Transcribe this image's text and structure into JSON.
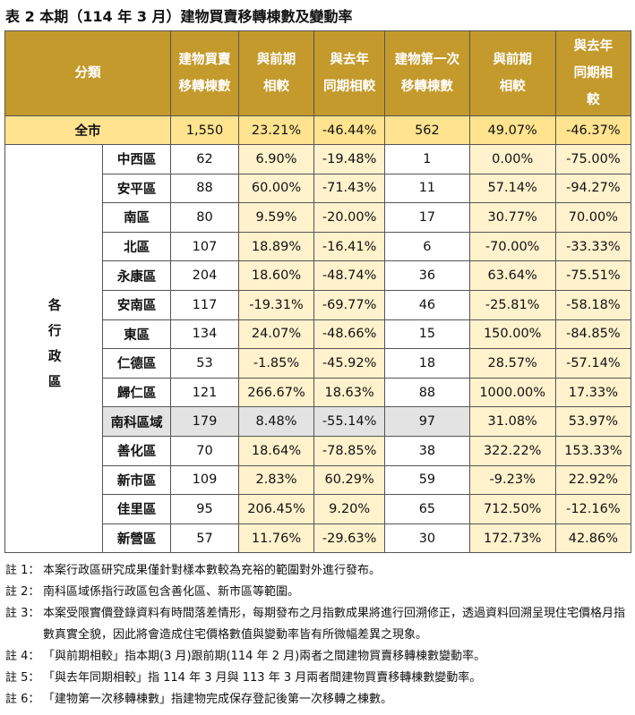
{
  "title": "表 2 本期（114 年 3 月）建物買賣移轉棟數及變動率",
  "table": {
    "header": [
      [
        "分類"
      ],
      [
        "建物買賣",
        "移轉棟數"
      ],
      [
        "與前期",
        "相較"
      ],
      [
        "與去年",
        "同期相較"
      ],
      [
        "建物第一次",
        "移轉棟數"
      ],
      [
        "與前期",
        "相較"
      ],
      [
        "與去年",
        "同期相",
        "較"
      ]
    ],
    "total": [
      "全市",
      "1,550",
      "23.21%",
      "-46.44%",
      "562",
      "49.07%",
      "-46.37%"
    ],
    "group_label": "各行政區",
    "rows": [
      [
        "中西區",
        "62",
        "6.90%",
        "-19.48%",
        "1",
        "0.00%",
        "-75.00%"
      ],
      [
        "安平區",
        "88",
        "60.00%",
        "-71.43%",
        "11",
        "57.14%",
        "-94.27%"
      ],
      [
        "南區",
        "80",
        "9.59%",
        "-20.00%",
        "17",
        "30.77%",
        "70.00%"
      ],
      [
        "北區",
        "107",
        "18.89%",
        "-16.41%",
        "6",
        "-70.00%",
        "-33.33%"
      ],
      [
        "永康區",
        "204",
        "18.60%",
        "-48.74%",
        "36",
        "63.64%",
        "-75.51%"
      ],
      [
        "安南區",
        "117",
        "-19.31%",
        "-69.77%",
        "46",
        "-25.81%",
        "-58.18%"
      ],
      [
        "東區",
        "134",
        "24.07%",
        "-48.66%",
        "15",
        "150.00%",
        "-84.85%"
      ],
      [
        "仁德區",
        "53",
        "-1.85%",
        "-45.92%",
        "18",
        "28.57%",
        "-57.14%"
      ],
      [
        "歸仁區",
        "121",
        "266.67%",
        "18.63%",
        "88",
        "1000.00%",
        "17.33%"
      ],
      [
        "南科區域",
        "179",
        "8.48%",
        "-55.14%",
        "97",
        "31.08%",
        "53.97%"
      ],
      [
        "善化區",
        "70",
        "18.64%",
        "-78.85%",
        "38",
        "322.22%",
        "153.33%"
      ],
      [
        "新市區",
        "109",
        "2.83%",
        "60.29%",
        "59",
        "-9.23%",
        "22.92%"
      ],
      [
        "佳里區",
        "95",
        "206.45%",
        "9.20%",
        "65",
        "712.50%",
        "-12.16%"
      ],
      [
        "新營區",
        "57",
        "11.76%",
        "-29.63%",
        "30",
        "172.73%",
        "42.86%"
      ]
    ]
  },
  "notes": [
    [
      "註 1：",
      "本案行政區研究成果僅針對樣本數較為充裕的範圍對外進行發布。"
    ],
    [
      "註 2：",
      "南科區域係指行政區包含善化區、新市區等範圍。"
    ],
    [
      "註 3：",
      "本案受限實價登錄資料有時間落差情形，每期發布之月指數成果將進行回溯修正，透過資料回溯呈現住宅價格月指數真實全貌，因此將會造成住宅價格數值與變動率皆有所微幅差異之現象。"
    ],
    [
      "註 4：",
      "「與前期相較」指本期(3 月)跟前期(114 年 2 月)兩者之間建物買賣移轉棟數變動率。"
    ],
    [
      "註 5：",
      "「與去年同期相較」指 114 年 3 月與 113 年 3 月兩者間建物買賣移轉棟數變動率。"
    ],
    [
      "註 6：",
      "「建物第一次移轉棟數」指建物完成保存登記後第一次移轉之棟數。"
    ]
  ]
}
